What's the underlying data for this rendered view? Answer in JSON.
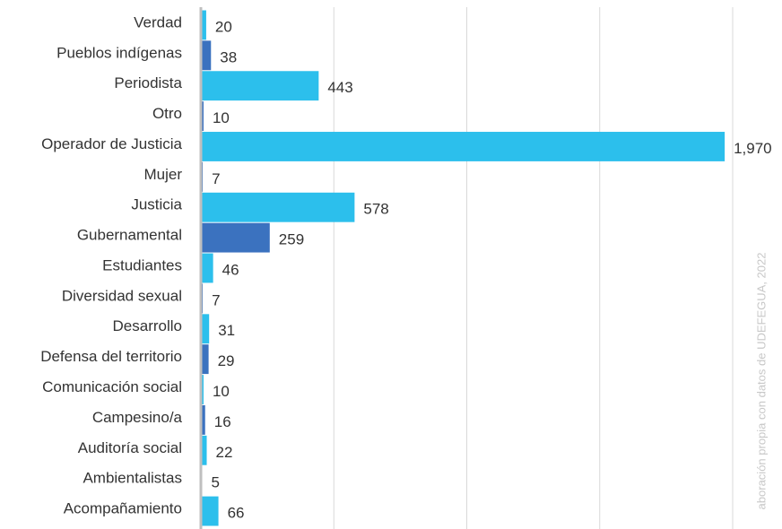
{
  "chart_data": {
    "type": "barh",
    "categories": [
      "Verdad",
      "Pueblos indígenas",
      "Periodista",
      "Otro",
      "Operador de Justicia",
      "Mujer",
      "Justicia",
      "Gubernamental",
      "Estudiantes",
      "Diversidad sexual",
      "Desarrollo",
      "Defensa del territorio",
      "Comunicación social",
      "Campesino/a",
      "Auditoría social",
      "Ambientalistas",
      "Acompañamiento"
    ],
    "values": [
      20,
      38,
      443,
      10,
      1970,
      7,
      578,
      259,
      46,
      7,
      31,
      29,
      10,
      16,
      22,
      5,
      66
    ],
    "value_labels": [
      "20",
      "38",
      "443",
      "10",
      "1,970",
      "7",
      "578",
      "259",
      "46",
      "7",
      "31",
      "29",
      "10",
      "16",
      "22",
      "5",
      "66"
    ],
    "colors": [
      "#2cbfec",
      "#3b72bf",
      "#2cbfec",
      "#3b72bf",
      "#2cbfec",
      "#3b72bf",
      "#2cbfec",
      "#3b72bf",
      "#2cbfec",
      "#3b72bf",
      "#2cbfec",
      "#3b72bf",
      "#2cbfec",
      "#3b72bf",
      "#2cbfec",
      "#3b72bf",
      "#2cbfec"
    ],
    "xlim": [
      0,
      2000
    ],
    "xticks": [
      0,
      500,
      1000,
      1500,
      2000
    ],
    "grid": true,
    "source": "aboración propia con datos de UDEFEGUA, 2022"
  }
}
